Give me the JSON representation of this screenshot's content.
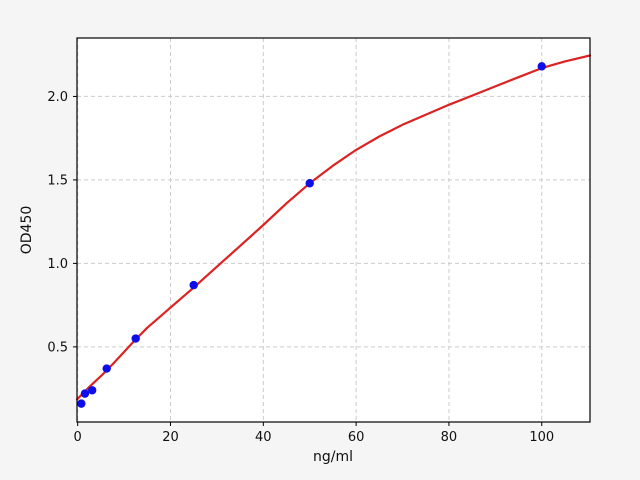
{
  "figure": {
    "background": "#f5f5f5",
    "plot_background": "#ffffff"
  },
  "colors": {
    "grid": "#cbcbcb",
    "spine": "#000000",
    "tick": "#000000",
    "tick_label": "#111111",
    "curve": "#dd2222",
    "marker": "#0d0dea"
  },
  "chart_data": {
    "type": "scatter",
    "title": "",
    "xlabel": "ng/ml",
    "ylabel": "OD450",
    "xlim": [
      -0.15,
      110.4
    ],
    "ylim": [
      0.05,
      2.35
    ],
    "grid": true,
    "grid_style": "dashed",
    "legend": "none",
    "xticks": [
      {
        "value": 0,
        "label": "0"
      },
      {
        "value": 20,
        "label": "20"
      },
      {
        "value": 40,
        "label": "40"
      },
      {
        "value": 60,
        "label": "60"
      },
      {
        "value": 80,
        "label": "80"
      },
      {
        "value": 100,
        "label": "100"
      }
    ],
    "yticks": [
      {
        "value": 0.5,
        "label": "0.5"
      },
      {
        "value": 1.0,
        "label": "1.0"
      },
      {
        "value": 1.5,
        "label": "1.5"
      },
      {
        "value": 2.0,
        "label": "2.0"
      }
    ],
    "series": [
      {
        "name": "standard-points",
        "type": "scatter",
        "color": "#0d0dea",
        "x": [
          0.78,
          1.56,
          3.12,
          6.25,
          12.5,
          25,
          50,
          100
        ],
        "y": [
          0.16,
          0.22,
          0.24,
          0.37,
          0.55,
          0.87,
          1.48,
          2.18
        ]
      },
      {
        "name": "fit-curve",
        "type": "line",
        "color": "#dd2222",
        "x": [
          -0.15,
          2.5,
          5,
          7.5,
          10,
          12.5,
          15,
          17.5,
          20,
          25,
          30,
          35,
          40,
          45,
          50,
          55,
          60,
          65,
          70,
          75,
          80,
          85,
          90,
          95,
          100,
          105,
          110.4
        ],
        "y": [
          0.185,
          0.26,
          0.325,
          0.395,
          0.47,
          0.545,
          0.615,
          0.675,
          0.735,
          0.855,
          0.98,
          1.105,
          1.23,
          1.36,
          1.48,
          1.585,
          1.68,
          1.76,
          1.83,
          1.89,
          1.95,
          2.005,
          2.06,
          2.115,
          2.17,
          2.21,
          2.245
        ]
      }
    ]
  }
}
